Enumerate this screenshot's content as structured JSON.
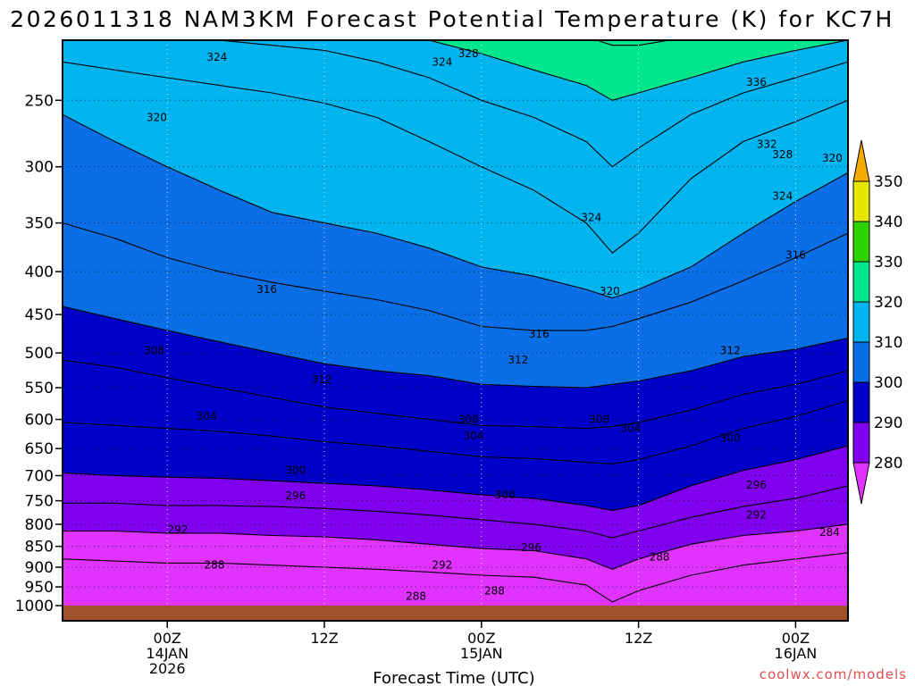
{
  "chart_data": {
    "type": "contour",
    "title": "2026011318 NAM3KM Forecast Potential Temperature (K) for KC7H",
    "xlabel": "Forecast Time (UTC)",
    "ylabel": "",
    "y_scale": "log-pressure",
    "y_axis_reversed": true,
    "ylim": [
      1000,
      200
    ],
    "y_ticks": [
      1000,
      950,
      900,
      850,
      800,
      750,
      700,
      650,
      600,
      550,
      500,
      450,
      400,
      350,
      300,
      250
    ],
    "x_range_hours": [
      -4,
      26
    ],
    "x_ticks": [
      {
        "hour": 0,
        "lines": [
          "00Z",
          "14JAN",
          "2026"
        ]
      },
      {
        "hour": 6,
        "lines": [
          "12Z"
        ]
      },
      {
        "hour": 12,
        "lines": [
          "00Z",
          "15JAN"
        ]
      },
      {
        "hour": 18,
        "lines": [
          "12Z"
        ]
      },
      {
        "hour": 24,
        "lines": [
          "00Z",
          "16JAN"
        ]
      }
    ],
    "grid": true,
    "colorbar": {
      "position": "right",
      "levels": [
        280,
        290,
        300,
        310,
        320,
        330,
        340,
        350
      ],
      "labels": [
        "350",
        "340",
        "330",
        "320",
        "310",
        "300",
        "290",
        "280"
      ]
    },
    "contour_interval": 4,
    "isotherm_pressure": {
      "hours": [
        -4,
        -2,
        0,
        2,
        4,
        6,
        8,
        10,
        12,
        14,
        16,
        17,
        18,
        20,
        22,
        24,
        26
      ],
      "levels": {
        "288": [
          880,
          885,
          890,
          890,
          895,
          900,
          905,
          912,
          920,
          925,
          945,
          990,
          960,
          920,
          895,
          880,
          865
        ],
        "292": [
          815,
          815,
          820,
          820,
          825,
          828,
          835,
          845,
          855,
          860,
          880,
          905,
          880,
          845,
          825,
          815,
          800
        ],
        "296": [
          755,
          755,
          760,
          760,
          762,
          766,
          772,
          780,
          790,
          800,
          815,
          830,
          815,
          785,
          762,
          745,
          720
        ],
        "300": [
          695,
          700,
          703,
          705,
          710,
          715,
          720,
          728,
          738,
          745,
          760,
          770,
          760,
          720,
          690,
          670,
          645
        ],
        "304": [
          605,
          610,
          615,
          620,
          628,
          638,
          645,
          655,
          665,
          668,
          675,
          678,
          670,
          645,
          615,
          595,
          570
        ],
        "308": [
          510,
          520,
          535,
          550,
          565,
          580,
          590,
          600,
          610,
          612,
          615,
          612,
          605,
          585,
          560,
          545,
          525
        ],
        "312": [
          440,
          455,
          470,
          485,
          500,
          515,
          525,
          532,
          545,
          548,
          550,
          545,
          540,
          525,
          505,
          495,
          480
        ],
        "316": [
          350,
          365,
          385,
          400,
          412,
          422,
          432,
          445,
          465,
          470,
          470,
          465,
          455,
          435,
          410,
          385,
          360
        ],
        "320": [
          260,
          280,
          300,
          320,
          340,
          350,
          360,
          375,
          395,
          405,
          420,
          430,
          420,
          395,
          360,
          330,
          305
        ],
        "324": [
          225,
          230,
          235,
          240,
          245,
          252,
          262,
          280,
          300,
          320,
          350,
          380,
          360,
          310,
          280,
          265,
          250
        ],
        "328": [
          205,
          208,
          210,
          212,
          215,
          218,
          225,
          235,
          250,
          262,
          280,
          300,
          285,
          260,
          245,
          235,
          225
        ],
        "332": [
          190,
          190,
          192,
          195,
          198,
          200,
          205,
          212,
          220,
          230,
          240,
          250,
          245,
          235,
          225,
          218,
          212
        ],
        "336": [
          180,
          180,
          181,
          182,
          184,
          186,
          190,
          194,
          200,
          205,
          210,
          215,
          215,
          210,
          205,
          200,
          196
        ],
        "340": [
          175,
          175,
          175,
          175,
          176,
          178,
          180,
          182,
          186,
          188,
          192,
          195,
          195,
          192,
          188,
          185,
          182
        ]
      }
    },
    "contour_labels": [
      {
        "text": "324",
        "hour": 1.9,
        "p": 222
      },
      {
        "text": "324",
        "hour": 10.5,
        "p": 225
      },
      {
        "text": "328",
        "hour": 11.5,
        "p": 220
      },
      {
        "text": "320",
        "hour": -0.4,
        "p": 262
      },
      {
        "text": "336",
        "hour": 22.5,
        "p": 238
      },
      {
        "text": "332",
        "hour": 22.9,
        "p": 282
      },
      {
        "text": "328",
        "hour": 23.5,
        "p": 290
      },
      {
        "text": "320",
        "hour": 25.4,
        "p": 293
      },
      {
        "text": "324",
        "hour": 23.5,
        "p": 325
      },
      {
        "text": "324",
        "hour": 16.2,
        "p": 345
      },
      {
        "text": "316",
        "hour": 24,
        "p": 382
      },
      {
        "text": "320",
        "hour": 16.9,
        "p": 422
      },
      {
        "text": "316",
        "hour": 3.8,
        "p": 420
      },
      {
        "text": "316",
        "hour": 14.2,
        "p": 475
      },
      {
        "text": "308",
        "hour": -0.5,
        "p": 497
      },
      {
        "text": "312",
        "hour": 21.5,
        "p": 497
      },
      {
        "text": "312",
        "hour": 13.4,
        "p": 510
      },
      {
        "text": "312",
        "hour": 5.9,
        "p": 538
      },
      {
        "text": "304",
        "hour": 1.5,
        "p": 595
      },
      {
        "text": "308",
        "hour": 11.5,
        "p": 600
      },
      {
        "text": "308",
        "hour": 16.5,
        "p": 600
      },
      {
        "text": "304",
        "hour": 11.7,
        "p": 628
      },
      {
        "text": "304",
        "hour": 17.7,
        "p": 615
      },
      {
        "text": "300",
        "hour": 21.5,
        "p": 632
      },
      {
        "text": "300",
        "hour": 4.9,
        "p": 690
      },
      {
        "text": "300",
        "hour": 12.9,
        "p": 738
      },
      {
        "text": "296",
        "hour": 4.9,
        "p": 740
      },
      {
        "text": "296",
        "hour": 22.5,
        "p": 718
      },
      {
        "text": "292",
        "hour": 0.4,
        "p": 812
      },
      {
        "text": "292",
        "hour": 22.5,
        "p": 780
      },
      {
        "text": "296",
        "hour": 13.9,
        "p": 853
      },
      {
        "text": "288",
        "hour": 18.8,
        "p": 875
      },
      {
        "text": "284",
        "hour": 25.3,
        "p": 818
      },
      {
        "text": "288",
        "hour": 1.8,
        "p": 895
      },
      {
        "text": "292",
        "hour": 10.5,
        "p": 895
      },
      {
        "text": "288",
        "hour": 12.5,
        "p": 960
      },
      {
        "text": "288",
        "hour": 9.5,
        "p": 975
      }
    ]
  },
  "colors": {
    "fills": [
      "#e033ff",
      "#8000f0",
      "#0000c8",
      "#0a6ee6",
      "#00b4f0",
      "#00e68c",
      "#2ed200",
      "#e6e600",
      "#f5aa00"
    ],
    "ground": "#a0522d"
  },
  "credit": "coolwx.com/models"
}
